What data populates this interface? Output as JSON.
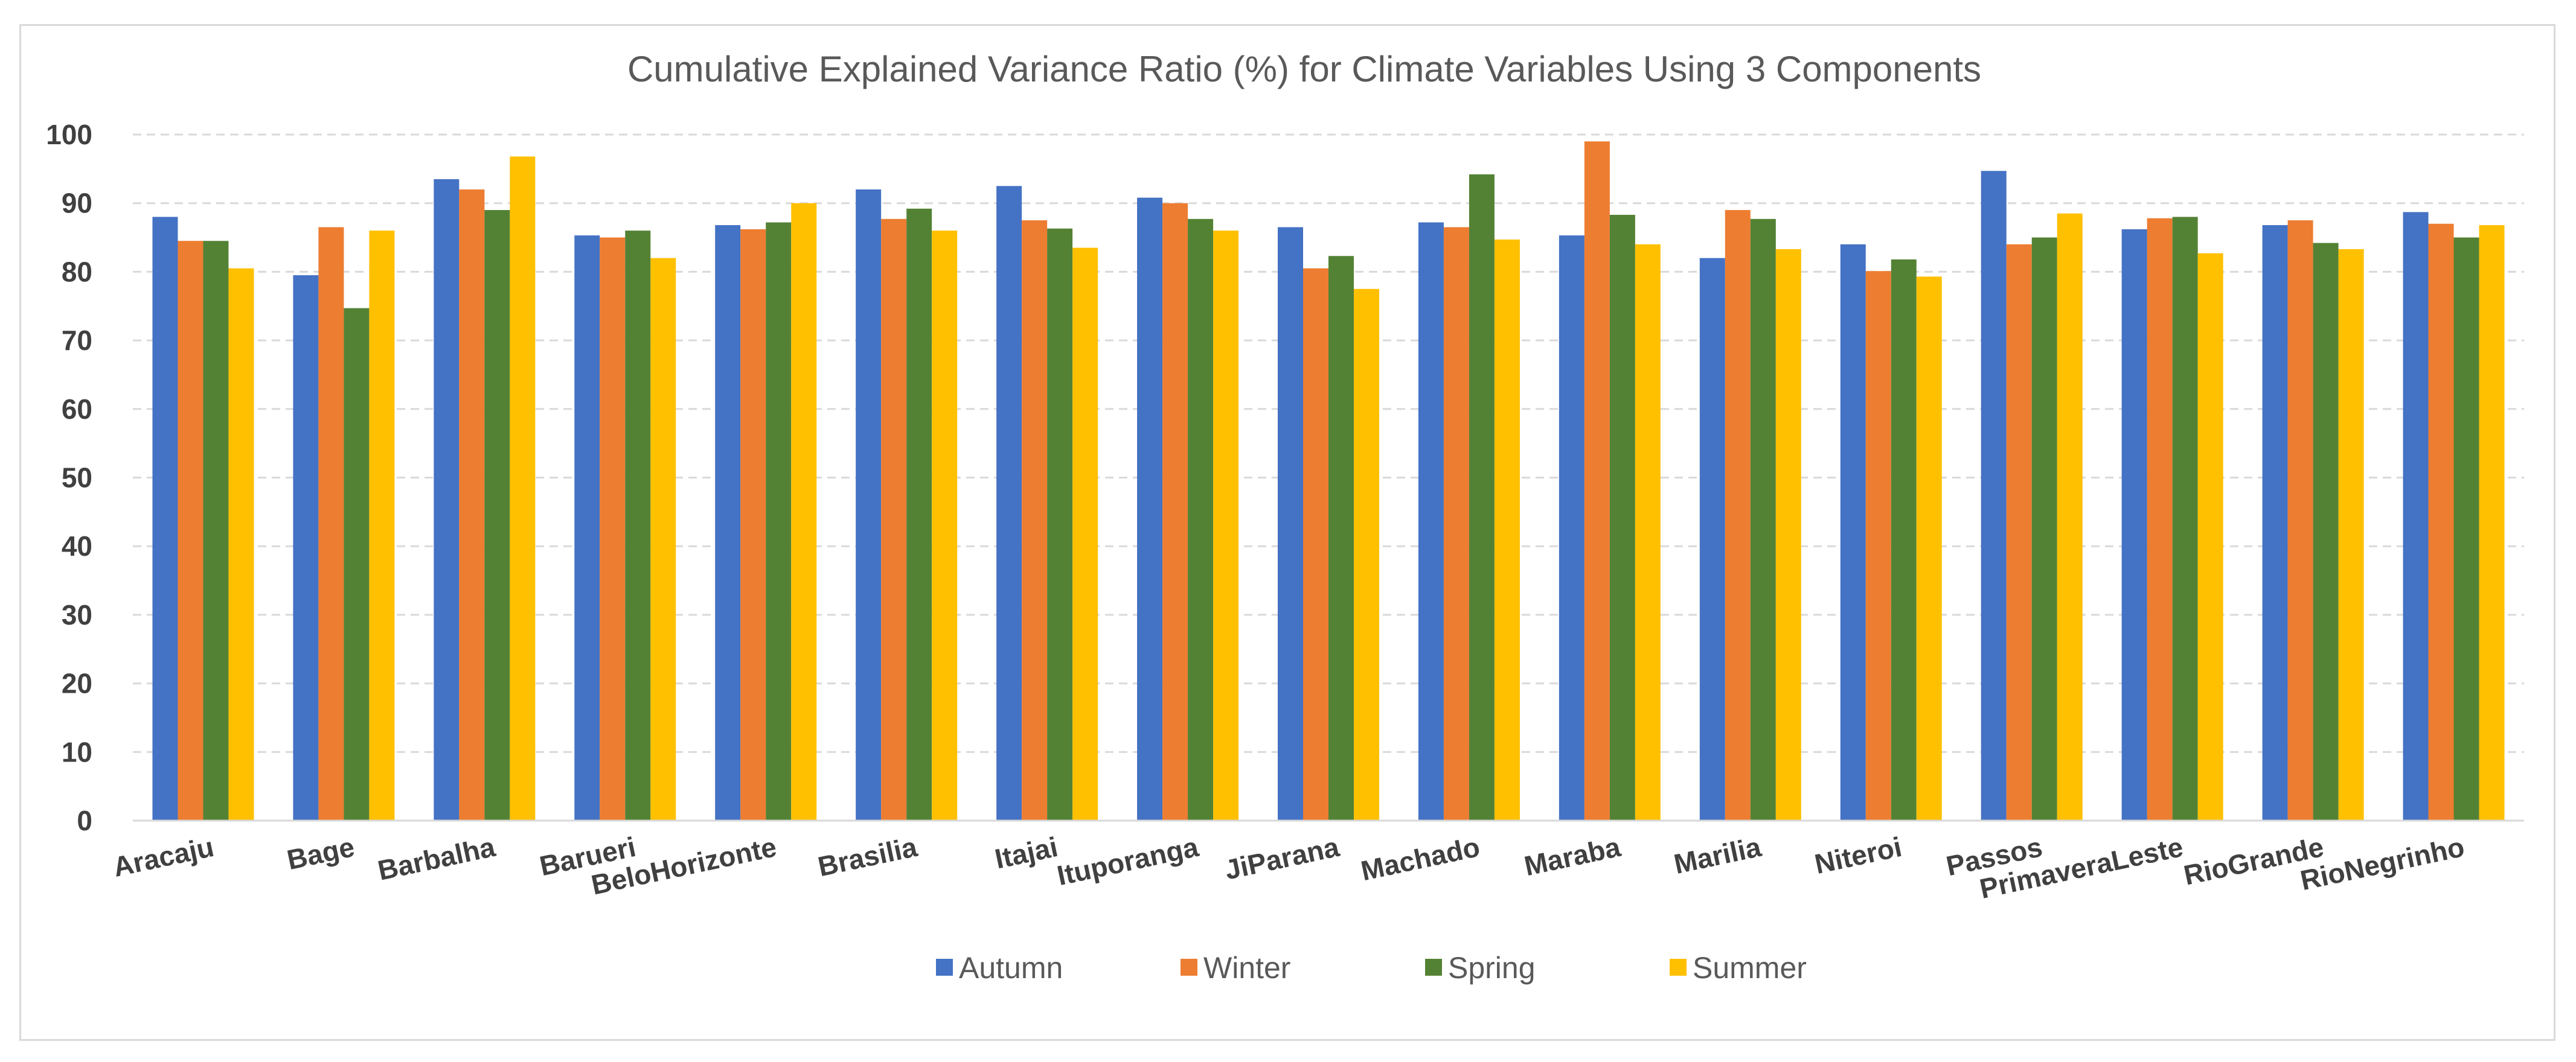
{
  "chart_data": {
    "type": "bar",
    "title": "Cumulative Explained Variance Ratio (%) for Climate Variables Using 3 Components",
    "xlabel": "",
    "ylabel": "",
    "ylim": [
      0,
      100
    ],
    "yticks": [
      0,
      10,
      20,
      30,
      40,
      50,
      60,
      70,
      80,
      90,
      100
    ],
    "grid": true,
    "legend_position": "bottom",
    "categories": [
      "Aracaju",
      "Bage",
      "Barbalha",
      "Barueri",
      "BeloHorizonte",
      "Brasilia",
      "Itajai",
      "Ituporanga",
      "JiParana",
      "Machado",
      "Maraba",
      "Marilia",
      "Niteroi",
      "Passos",
      "PrimaveraLeste",
      "RioGrande",
      "RioNegrinho"
    ],
    "series": [
      {
        "name": "Autumn",
        "color": "#4472C4",
        "values": [
          88.0,
          79.5,
          93.5,
          85.3,
          86.8,
          92.0,
          92.5,
          90.8,
          86.5,
          87.2,
          85.3,
          82.0,
          84.0,
          94.7,
          86.2,
          86.8,
          88.7
        ]
      },
      {
        "name": "Winter",
        "color": "#ED7D31",
        "values": [
          84.5,
          86.5,
          92.0,
          85.0,
          86.2,
          87.7,
          87.5,
          90.0,
          80.5,
          86.5,
          99.0,
          89.0,
          80.1,
          84.0,
          87.8,
          87.5,
          87.0
        ]
      },
      {
        "name": "Spring",
        "color": "#548235",
        "values": [
          84.5,
          74.7,
          89.0,
          86.0,
          87.2,
          89.2,
          86.3,
          87.7,
          82.3,
          94.2,
          88.3,
          87.7,
          81.8,
          85.0,
          88.0,
          84.2,
          85.0
        ]
      },
      {
        "name": "Summer",
        "color": "#FFC000",
        "values": [
          80.5,
          86.0,
          96.8,
          82.0,
          90.0,
          86.0,
          83.5,
          86.0,
          77.5,
          84.7,
          84.0,
          83.3,
          79.3,
          88.5,
          82.7,
          83.3,
          86.8
        ]
      }
    ]
  }
}
